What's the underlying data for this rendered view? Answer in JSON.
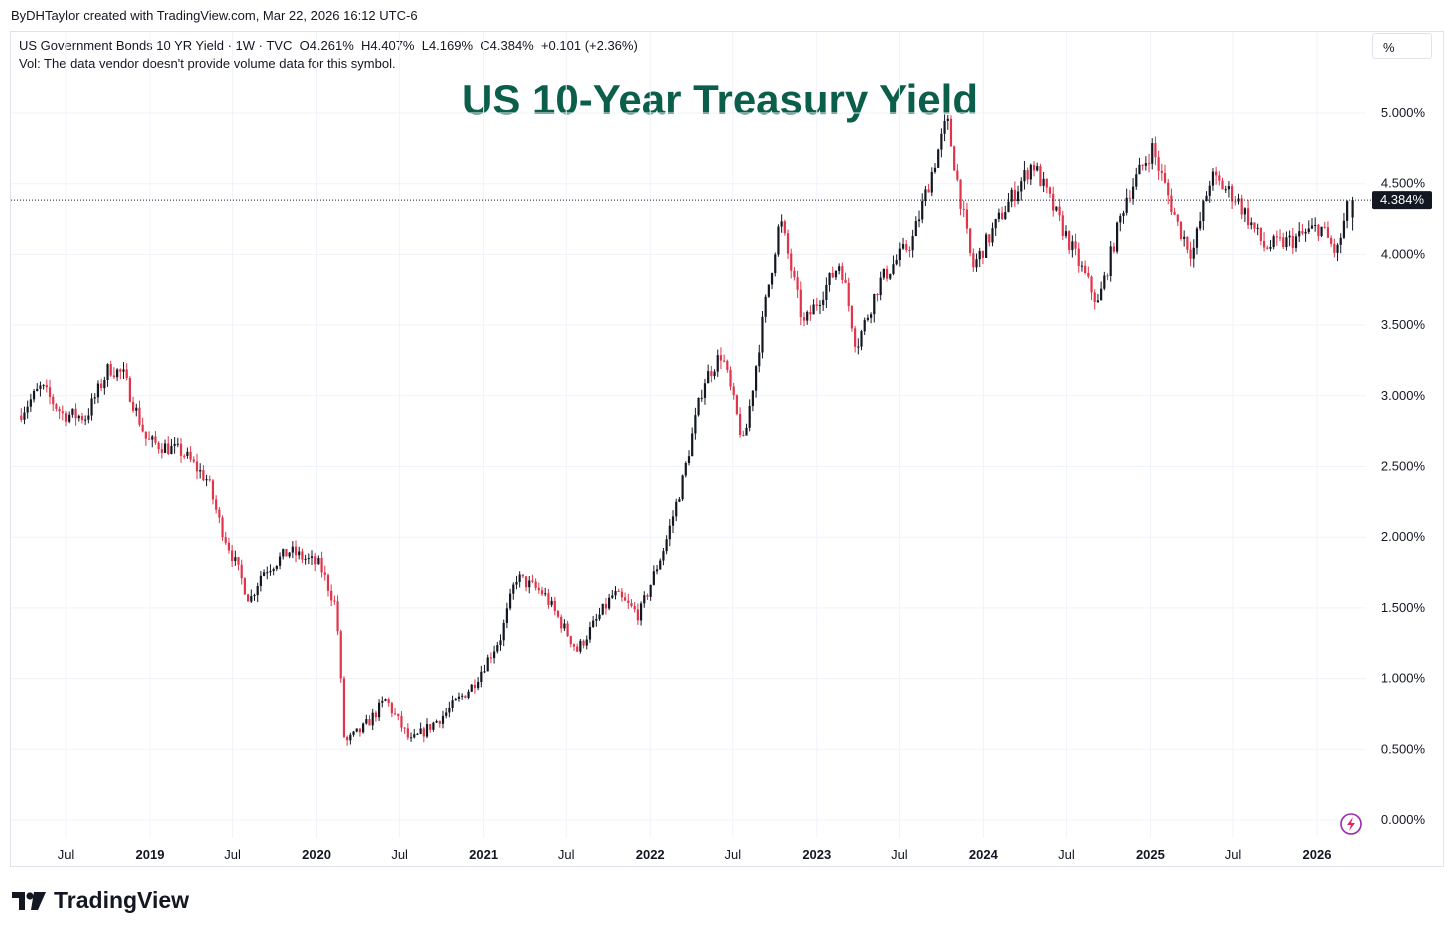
{
  "credit": "ByDHTaylor created with TradingView.com, Mar 22, 2026 16:12 UTC-6",
  "legend": {
    "line1": "US Government Bonds 10 YR Yield · 1W · TVC  O4.261%  H4.407%  L4.169%  C4.384%  +0.101 (+2.36%)",
    "line2": "Vol: The data vendor doesn't provide volume data for this symbol."
  },
  "title": "US 10-Year Treasury Yield",
  "unit_button": "%",
  "brand": "TradingView",
  "colors": {
    "up": "#131722",
    "down": "#e0344a",
    "title": "#0b5e4a",
    "grid": "#f0f3fa"
  },
  "chart_data": {
    "type": "candlestick",
    "interval": "1W",
    "ylim": [
      0,
      5.0
    ],
    "y_ticks": [
      "0.000%",
      "0.500%",
      "1.000%",
      "1.500%",
      "2.000%",
      "2.500%",
      "3.000%",
      "3.500%",
      "4.000%",
      "4.500%",
      "5.000%"
    ],
    "y_tick_values": [
      0,
      0.5,
      1.0,
      1.5,
      2.0,
      2.5,
      3.0,
      3.5,
      4.0,
      4.5,
      5.0
    ],
    "x_ticks": [
      {
        "label": "Jul",
        "date": "2018-07-01",
        "bold": false
      },
      {
        "label": "2019",
        "date": "2019-01-01",
        "bold": true
      },
      {
        "label": "Jul",
        "date": "2019-07-01",
        "bold": false
      },
      {
        "label": "2020",
        "date": "2020-01-01",
        "bold": true
      },
      {
        "label": "Jul",
        "date": "2020-07-01",
        "bold": false
      },
      {
        "label": "2021",
        "date": "2021-01-01",
        "bold": true
      },
      {
        "label": "Jul",
        "date": "2021-07-01",
        "bold": false
      },
      {
        "label": "2022",
        "date": "2022-01-01",
        "bold": true
      },
      {
        "label": "Jul",
        "date": "2022-07-01",
        "bold": false
      },
      {
        "label": "2023",
        "date": "2023-01-01",
        "bold": true
      },
      {
        "label": "Jul",
        "date": "2023-07-01",
        "bold": false
      },
      {
        "label": "2024",
        "date": "2024-01-01",
        "bold": true
      },
      {
        "label": "Jul",
        "date": "2024-07-01",
        "bold": false
      },
      {
        "label": "2025",
        "date": "2025-01-01",
        "bold": true
      },
      {
        "label": "Jul",
        "date": "2025-07-01",
        "bold": false
      },
      {
        "label": "2026",
        "date": "2026-01-01",
        "bold": true
      }
    ],
    "last_price_label": "4.384%",
    "last_price": 4.384,
    "last_candle": {
      "open": 4.261,
      "high": 4.407,
      "low": 4.169,
      "close": 4.384
    },
    "approx_close_path": [
      {
        "date": "2018-03-25",
        "value": 2.86
      },
      {
        "date": "2018-05-15",
        "value": 3.06
      },
      {
        "date": "2018-07-01",
        "value": 2.87
      },
      {
        "date": "2018-08-20",
        "value": 2.85
      },
      {
        "date": "2018-10-10",
        "value": 3.2
      },
      {
        "date": "2018-11-10",
        "value": 3.15
      },
      {
        "date": "2019-01-01",
        "value": 2.68
      },
      {
        "date": "2019-03-20",
        "value": 2.6
      },
      {
        "date": "2019-05-15",
        "value": 2.4
      },
      {
        "date": "2019-06-10",
        "value": 2.1
      },
      {
        "date": "2019-08-15",
        "value": 1.55
      },
      {
        "date": "2019-09-10",
        "value": 1.75
      },
      {
        "date": "2019-11-10",
        "value": 1.9
      },
      {
        "date": "2020-01-15",
        "value": 1.8
      },
      {
        "date": "2020-02-20",
        "value": 1.5
      },
      {
        "date": "2020-03-09",
        "value": 0.54
      },
      {
        "date": "2020-04-20",
        "value": 0.65
      },
      {
        "date": "2020-06-08",
        "value": 0.85
      },
      {
        "date": "2020-08-01",
        "value": 0.55
      },
      {
        "date": "2020-10-15",
        "value": 0.75
      },
      {
        "date": "2020-12-15",
        "value": 0.95
      },
      {
        "date": "2021-02-15",
        "value": 1.3
      },
      {
        "date": "2021-03-20",
        "value": 1.72
      },
      {
        "date": "2021-05-20",
        "value": 1.6
      },
      {
        "date": "2021-08-01",
        "value": 1.2
      },
      {
        "date": "2021-10-20",
        "value": 1.6
      },
      {
        "date": "2021-12-15",
        "value": 1.45
      },
      {
        "date": "2022-02-10",
        "value": 1.95
      },
      {
        "date": "2022-03-20",
        "value": 2.4
      },
      {
        "date": "2022-05-05",
        "value": 3.1
      },
      {
        "date": "2022-06-14",
        "value": 3.3
      },
      {
        "date": "2022-08-01",
        "value": 2.65
      },
      {
        "date": "2022-09-20",
        "value": 3.7
      },
      {
        "date": "2022-10-20",
        "value": 4.25
      },
      {
        "date": "2022-12-10",
        "value": 3.5
      },
      {
        "date": "2023-03-01",
        "value": 3.95
      },
      {
        "date": "2023-04-05",
        "value": 3.35
      },
      {
        "date": "2023-05-25",
        "value": 3.8
      },
      {
        "date": "2023-08-05",
        "value": 4.1
      },
      {
        "date": "2023-10-20",
        "value": 4.95
      },
      {
        "date": "2023-12-15",
        "value": 3.9
      },
      {
        "date": "2024-02-20",
        "value": 4.3
      },
      {
        "date": "2024-04-25",
        "value": 4.65
      },
      {
        "date": "2024-06-20",
        "value": 4.25
      },
      {
        "date": "2024-09-15",
        "value": 3.65
      },
      {
        "date": "2024-11-15",
        "value": 4.4
      },
      {
        "date": "2025-01-12",
        "value": 4.75
      },
      {
        "date": "2025-03-10",
        "value": 4.2
      },
      {
        "date": "2025-04-10",
        "value": 4.0
      },
      {
        "date": "2025-05-20",
        "value": 4.55
      },
      {
        "date": "2025-07-15",
        "value": 4.4
      },
      {
        "date": "2025-09-15",
        "value": 4.05
      },
      {
        "date": "2025-11-15",
        "value": 4.1
      },
      {
        "date": "2026-01-15",
        "value": 4.2
      },
      {
        "date": "2026-02-20",
        "value": 4.0
      },
      {
        "date": "2026-03-20",
        "value": 4.384
      }
    ]
  }
}
